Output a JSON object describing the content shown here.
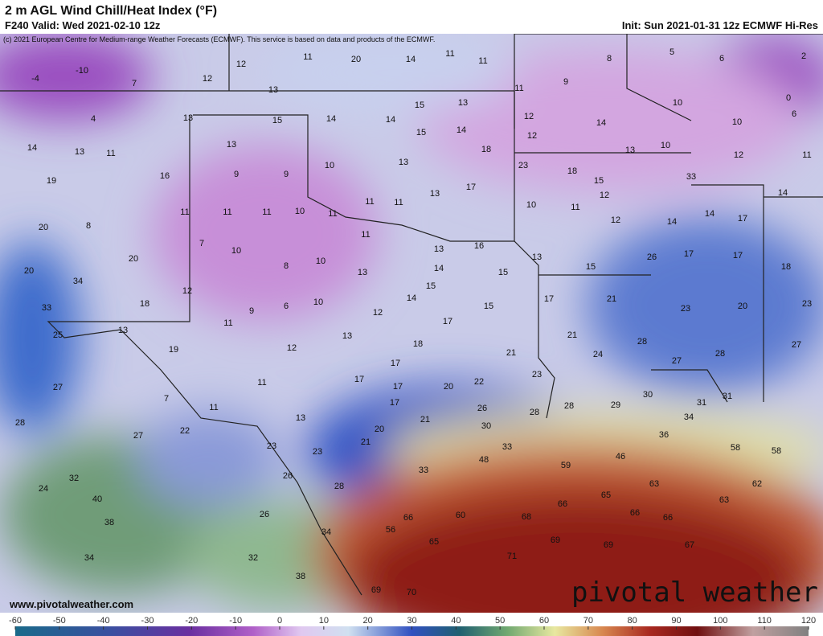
{
  "header": {
    "title": "2 m AGL Wind Chill/Heat Index (°F)",
    "valid": "F240 Valid: Wed 2021-02-10 12z",
    "init": "Init: Sun 2021-01-31 12z ECMWF Hi-Res",
    "credit": "(c) 2021 European Centre for Medium-range Weather Forecasts (ECMWF). This service is based on data and products of the ECMWF."
  },
  "map": {
    "points": [
      -4,
      -10,
      7,
      12,
      12,
      11,
      20,
      14,
      11,
      11,
      8,
      5,
      6,
      2,
      4,
      13,
      13,
      11,
      9,
      15,
      13,
      10,
      0,
      6,
      14,
      13,
      11,
      15,
      14,
      14,
      15,
      14,
      12,
      12,
      14,
      10,
      13,
      18,
      13,
      10,
      12,
      11,
      19,
      16,
      9,
      9,
      10,
      13,
      23,
      18,
      15,
      33,
      14,
      20,
      8,
      11,
      11,
      11,
      10,
      11,
      11,
      11,
      13,
      17,
      10,
      11,
      12,
      12,
      14,
      14,
      17,
      7,
      10,
      11,
      13,
      16,
      13,
      15,
      26,
      17,
      17,
      20,
      20,
      34,
      8,
      10,
      13,
      14,
      15,
      18,
      12,
      18,
      15,
      33,
      9,
      6,
      10,
      14,
      15,
      17,
      21,
      23,
      20,
      23,
      13,
      25,
      11,
      12,
      17,
      13,
      21,
      12,
      18,
      28,
      19,
      21,
      24,
      27,
      28,
      27,
      17,
      23,
      27,
      11,
      17,
      17,
      20,
      22,
      7,
      11,
      17,
      26,
      28,
      29,
      30,
      31,
      31,
      28,
      13,
      21,
      28,
      34,
      22,
      27,
      20,
      30,
      23,
      23,
      21,
      33,
      36,
      58,
      58,
      48,
      46,
      59,
      26,
      33,
      32,
      24,
      28,
      63,
      62,
      40,
      65,
      66,
      63,
      26,
      38,
      66,
      60,
      68,
      66,
      66,
      56,
      34,
      65,
      69,
      69,
      67,
      34,
      32,
      71,
      38,
      69,
      70
    ],
    "url": "www.pivotalweather.com",
    "logo": "pivotal weather"
  },
  "colorbar": {
    "ticks": [
      -60,
      -50,
      -40,
      -30,
      -20,
      -10,
      0,
      10,
      20,
      30,
      40,
      50,
      60,
      70,
      80,
      90,
      100,
      110,
      120
    ],
    "lim": [
      -60,
      120
    ]
  }
}
